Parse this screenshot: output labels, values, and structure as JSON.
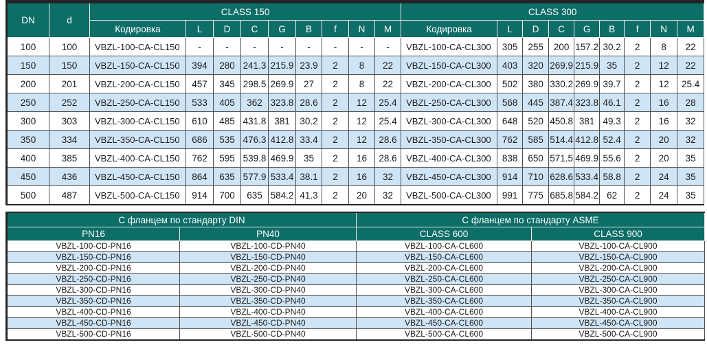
{
  "top_table": {
    "col_dn": "DN",
    "col_d": "d",
    "class150_label": "CLASS 150",
    "class300_label": "CLASS 300",
    "sub_headers": [
      "Кодировка",
      "L",
      "D",
      "C",
      "G",
      "B",
      "f",
      "N",
      "M"
    ],
    "rows": [
      {
        "dn": "100",
        "d": "100",
        "class150": [
          "VBZL-100-CA-CL150",
          "-",
          "-",
          "-",
          "-",
          "-",
          "-",
          "-",
          "-"
        ],
        "class300": [
          "VBZL-100-CA-CL300",
          "305",
          "255",
          "200",
          "157.2",
          "30.2",
          "2",
          "8",
          "22"
        ]
      },
      {
        "dn": "150",
        "d": "150",
        "class150": [
          "VBZL-150-CA-CL150",
          "394",
          "280",
          "241.3",
          "215.9",
          "23.9",
          "2",
          "8",
          "22"
        ],
        "class300": [
          "VBZL-150-CA-CL300",
          "403",
          "320",
          "269.9",
          "215.9",
          "35",
          "2",
          "12",
          "22"
        ]
      },
      {
        "dn": "200",
        "d": "201",
        "class150": [
          "VBZL-200-CA-CL150",
          "457",
          "345",
          "298.5",
          "269.9",
          "27",
          "2",
          "8",
          "22"
        ],
        "class300": [
          "VBZL-200-CA-CL300",
          "502",
          "380",
          "330.2",
          "269.9",
          "39.7",
          "2",
          "12",
          "25.4"
        ]
      },
      {
        "dn": "250",
        "d": "252",
        "class150": [
          "VBZL-250-CA-CL150",
          "533",
          "405",
          "362",
          "323.8",
          "28.6",
          "2",
          "12",
          "25.4"
        ],
        "class300": [
          "VBZL-250-CA-CL300",
          "568",
          "445",
          "387.4",
          "323.8",
          "46.1",
          "2",
          "16",
          "28"
        ]
      },
      {
        "dn": "300",
        "d": "303",
        "class150": [
          "VBZL-300-CA-CL150",
          "610",
          "485",
          "431.8",
          "381",
          "30.2",
          "2",
          "12",
          "25.4"
        ],
        "class300": [
          "VBZL-300-CA-CL300",
          "648",
          "520",
          "450.8",
          "381",
          "49.3",
          "2",
          "16",
          "32"
        ]
      },
      {
        "dn": "350",
        "d": "334",
        "class150": [
          "VBZL-350-CA-CL150",
          "686",
          "535",
          "476.3",
          "412.8",
          "33.4",
          "2",
          "12",
          "28.6"
        ],
        "class300": [
          "VBZL-350-CA-CL300",
          "762",
          "585",
          "514.4",
          "412.8",
          "52.4",
          "2",
          "20",
          "32"
        ]
      },
      {
        "dn": "400",
        "d": "385",
        "class150": [
          "VBZL-400-CA-CL150",
          "762",
          "595",
          "539.8",
          "469.9",
          "35",
          "2",
          "16",
          "28.6"
        ],
        "class300": [
          "VBZL-400-CA-CL300",
          "838",
          "650",
          "571.5",
          "469.9",
          "55.6",
          "2",
          "20",
          "35"
        ]
      },
      {
        "dn": "450",
        "d": "436",
        "class150": [
          "VBZL-450-CA-CL150",
          "864",
          "635",
          "577.9",
          "533.4",
          "38.1",
          "2",
          "16",
          "32"
        ],
        "class300": [
          "VBZL-450-CA-CL300",
          "914",
          "710",
          "628.6",
          "533.4",
          "58.8",
          "2",
          "24",
          "35"
        ]
      },
      {
        "dn": "500",
        "d": "487",
        "class150": [
          "VBZL-500-CA-CL150",
          "914",
          "700",
          "635",
          "584.2",
          "41.3",
          "2",
          "20",
          "32"
        ],
        "class300": [
          "VBZL-500-CA-CL300",
          "991",
          "775",
          "685.8",
          "584.2",
          "62",
          "2",
          "24",
          "35"
        ]
      }
    ]
  },
  "bottom_table": {
    "din_label": "С фланцем по стандарту DIN",
    "asme_label": "С фланцем по стандарту ASME",
    "sub_headers": [
      "PN16",
      "PN40",
      "CLASS 600",
      "CLASS 900"
    ],
    "rows": [
      [
        "VBZL-100-CD-PN16",
        "VBZL-100-CD-PN40",
        "VBZL-100-CA-CL600",
        "VBZL-100-CA-CL900"
      ],
      [
        "VBZL-150-CD-PN16",
        "VBZL-150-CD-PN40",
        "VBZL-150-CA-CL600",
        "VBZL-150-CA-CL900"
      ],
      [
        "VBZL-200-CD-PN16",
        "VBZL-200-CD-PN40",
        "VBZL-200-CA-CL600",
        "VBZL-200-CA-CL900"
      ],
      [
        "VBZL-250-CD-PN16",
        "VBZL-250-CD-PN40",
        "VBZL-250-CA-CL600",
        "VBZL-250-CA-CL900"
      ],
      [
        "VBZL-300-CD-PN16",
        "VBZL-300-CD-PN40",
        "VBZL-300-CA-CL600",
        "VBZL-300-CA-CL900"
      ],
      [
        "VBZL-350-CD-PN16",
        "VBZL-350-CD-PN40",
        "VBZL-350-CA-CL600",
        "VBZL-350-CA-CL900"
      ],
      [
        "VBZL-400-CD-PN16",
        "VBZL-400-CD-PN40",
        "VBZL-400-CA-CL600",
        "VBZL-400-CA-CL900"
      ],
      [
        "VBZL-450-CD-PN16",
        "VBZL-450-CD-PN40",
        "VBZL-450-CA-CL600",
        "VBZL-450-CA-CL900"
      ],
      [
        "VBZL-500-CD-PN16",
        "VBZL-500-CD-PN40",
        "VBZL-500-CA-CL600",
        "VBZL-500-CA-CL900"
      ]
    ]
  },
  "colors": {
    "header_bg": "#0d6e67",
    "stripe_bg": "#cfe4f5",
    "row_bg": "#ffffff",
    "outer_border": "#242424",
    "grid_line": "#4f4f4f",
    "header_text": "#ffffff",
    "body_text": "#1c1c1c"
  }
}
